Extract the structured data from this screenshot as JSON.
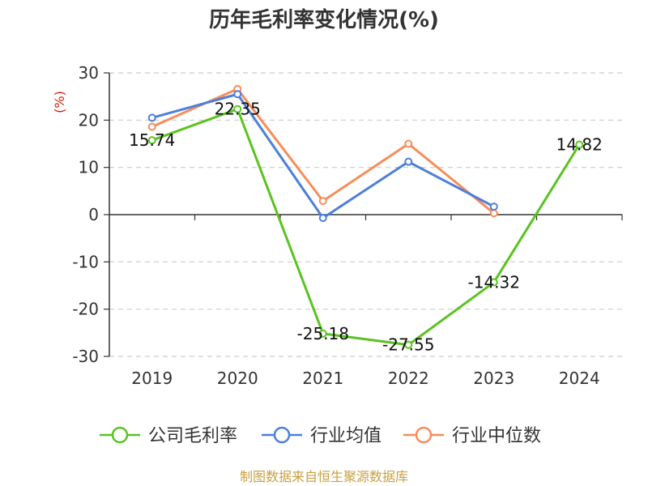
{
  "title": "历年毛利率变化情况(%)",
  "source": "制图数据来自恒生聚源数据库",
  "chart_data": {
    "type": "line",
    "title": "历年毛利率变化情况(%)",
    "ylabel": "(%)",
    "xlabel": "",
    "categories": [
      "2019",
      "2020",
      "2021",
      "2022",
      "2023",
      "2024"
    ],
    "ylim": [
      -30,
      30
    ],
    "yticks": [
      30,
      20,
      10,
      0,
      -10,
      -20,
      -30
    ],
    "grid": true,
    "legend_position": "bottom",
    "series": [
      {
        "name": "公司毛利率",
        "color": "#5ac321",
        "values": [
          15.74,
          22.35,
          -25.18,
          -27.55,
          -14.32,
          14.82
        ],
        "labels": [
          "15.74",
          "22.35",
          "-25.18",
          "-27.55",
          "-14.32",
          "14.82"
        ]
      },
      {
        "name": "行业均值",
        "color": "#4e7fd9",
        "values": [
          20.5,
          25.5,
          -0.7,
          11.2,
          1.7,
          null
        ]
      },
      {
        "name": "行业中位数",
        "color": "#f78d5b",
        "values": [
          18.6,
          26.6,
          2.9,
          15.0,
          0.3,
          null
        ]
      }
    ]
  }
}
